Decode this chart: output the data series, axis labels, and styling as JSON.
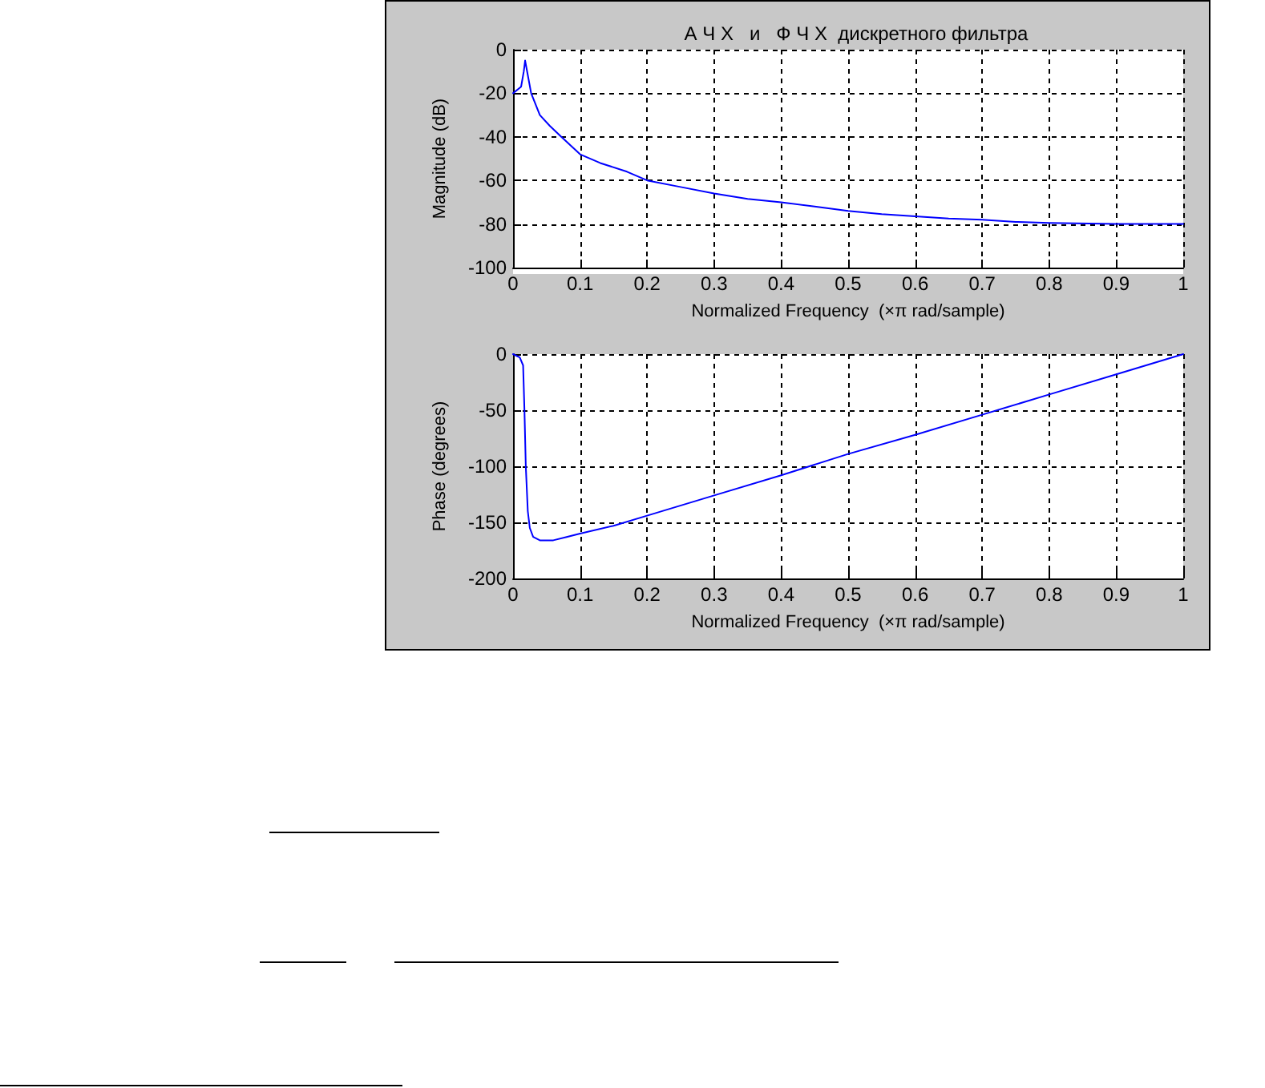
{
  "chart_data": [
    {
      "type": "line",
      "title": "А Ч Х   и   Ф Ч Х  дискретного фильтра",
      "xlabel": "Normalized Frequency  (×π rad/sample)",
      "ylabel": "Magnitude (dB)",
      "xlim": [
        0,
        1
      ],
      "ylim": [
        -100,
        0
      ],
      "xticks": [
        0,
        0.1,
        0.2,
        0.3,
        0.4,
        0.5,
        0.6,
        0.7,
        0.8,
        0.9,
        1
      ],
      "yticks": [
        -100,
        -80,
        -60,
        -40,
        -20,
        0
      ],
      "grid": true,
      "line_style": "solid",
      "marker": "none",
      "series": [
        {
          "color": "#0000ff",
          "x": [
            0,
            0.012,
            0.016,
            0.018,
            0.021,
            0.027,
            0.04,
            0.055,
            0.072,
            0.1,
            0.13,
            0.17,
            0.2,
            0.25,
            0.3,
            0.35,
            0.4,
            0.45,
            0.5,
            0.55,
            0.6,
            0.65,
            0.7,
            0.75,
            0.8,
            0.9,
            1
          ],
          "values": [
            -20,
            -17,
            -10,
            -5,
            -10,
            -20,
            -30,
            -35,
            -40,
            -48,
            -52,
            -56,
            -60,
            -63,
            -66,
            -68.5,
            -70,
            -72,
            -74,
            -75.5,
            -76.5,
            -77.5,
            -78,
            -79,
            -79.5,
            -80,
            -80
          ]
        }
      ]
    },
    {
      "type": "line",
      "xlabel": "Normalized Frequency  (×π rad/sample)",
      "ylabel": "Phase (degrees)",
      "xlim": [
        0,
        1
      ],
      "ylim": [
        -200,
        0
      ],
      "xticks": [
        0,
        0.1,
        0.2,
        0.3,
        0.4,
        0.5,
        0.6,
        0.7,
        0.8,
        0.9,
        1
      ],
      "yticks": [
        -200,
        -150,
        -100,
        -50,
        0
      ],
      "grid": true,
      "line_style": "solid",
      "marker": "none",
      "series": [
        {
          "color": "#0000ff",
          "x": [
            0,
            0.01,
            0.015,
            0.017,
            0.019,
            0.022,
            0.025,
            0.03,
            0.04,
            0.06,
            0.08,
            0.1,
            0.15,
            0.2,
            0.3,
            0.4,
            0.5,
            0.6,
            0.7,
            0.8,
            0.9,
            1
          ],
          "values": [
            0,
            -3,
            -10,
            -50,
            -100,
            -140,
            -155,
            -163,
            -166,
            -166,
            -163,
            -160,
            -153,
            -144,
            -126,
            -108,
            -89,
            -72,
            -54,
            -36,
            -18,
            0
          ]
        }
      ]
    }
  ]
}
